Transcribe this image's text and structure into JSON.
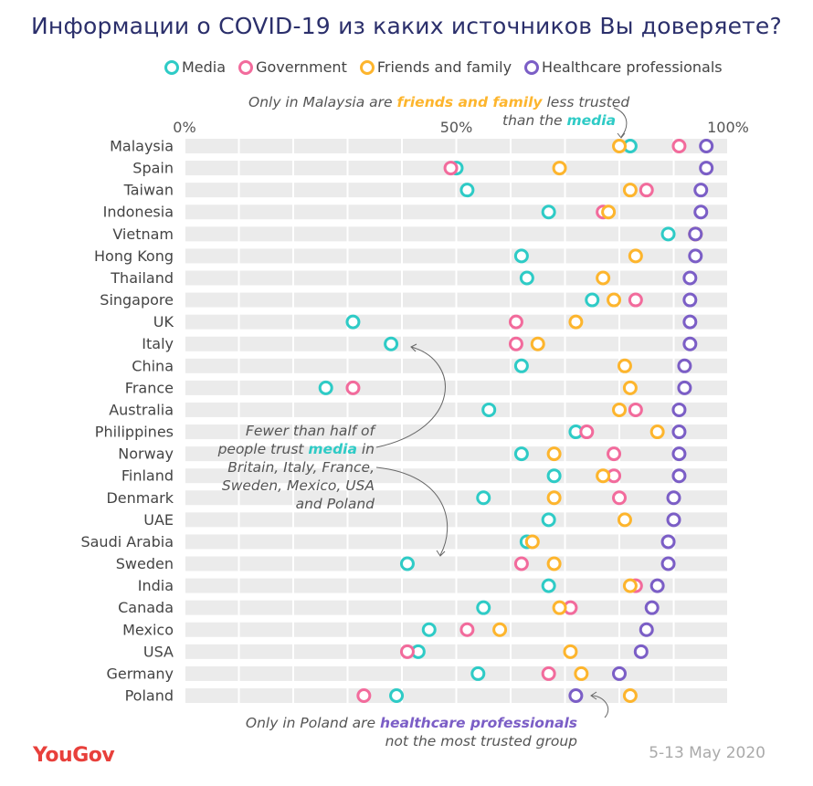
{
  "chart_data": {
    "type": "scatter",
    "title": "Информации о COVID-19 из каких источников Вы доверяете?",
    "xlim": [
      0,
      100
    ],
    "x_ticks": [
      "0%",
      "50%",
      "100%"
    ],
    "grid": true,
    "legend_placement": "top",
    "categories": [
      "Malaysia",
      "Spain",
      "Taiwan",
      "Indonesia",
      "Vietnam",
      "Hong Kong",
      "Thailand",
      "Singapore",
      "UK",
      "Italy",
      "China",
      "France",
      "Australia",
      "Philippines",
      "Norway",
      "Finland",
      "Denmark",
      "UAE",
      "Saudi Arabia",
      "Sweden",
      "India",
      "Canada",
      "Mexico",
      "USA",
      "Germany",
      "Poland"
    ],
    "series": [
      {
        "name": "Media",
        "color": "#2ecbc6",
        "values": [
          82,
          50,
          52,
          67,
          89,
          62,
          63,
          75,
          31,
          38,
          62,
          26,
          56,
          72,
          62,
          68,
          55,
          67,
          63,
          41,
          67,
          55,
          45,
          43,
          54,
          39
        ]
      },
      {
        "name": "Government",
        "color": "#f26b9c",
        "values": [
          91,
          49,
          85,
          77,
          94,
          null,
          null,
          83,
          61,
          61,
          null,
          31,
          83,
          74,
          79,
          79,
          80,
          null,
          null,
          62,
          83,
          71,
          52,
          41,
          67,
          33
        ]
      },
      {
        "name": "Friends and family",
        "color": "#fdb52d",
        "values": [
          80,
          69,
          82,
          78,
          94,
          83,
          77,
          79,
          72,
          65,
          81,
          82,
          80,
          87,
          68,
          77,
          68,
          81,
          64,
          68,
          82,
          69,
          58,
          71,
          73,
          82
        ]
      },
      {
        "name": "Healthcare professionals",
        "color": "#7b5ec6",
        "values": [
          96,
          96,
          95,
          95,
          94,
          94,
          93,
          93,
          93,
          93,
          92,
          92,
          91,
          91,
          91,
          91,
          90,
          90,
          89,
          89,
          87,
          86,
          85,
          84,
          80,
          72
        ]
      }
    ]
  },
  "annotations": {
    "malaysia": {
      "pre": "Only in Malaysia are ",
      "hl1": "friends and family",
      "mid": " less trusted",
      "line2": "than the ",
      "hl2": "media"
    },
    "media": {
      "l1": "Fewer than half of",
      "l2pre": "people trust ",
      "l2hl": "media",
      "l2post": " in",
      "l3": "Britain, Italy, France,",
      "l4": "Sweden, Mexico, USA",
      "l5": "and Poland"
    },
    "poland": {
      "pre": "Only in Poland are ",
      "hl": "healthcare professionals",
      "line2": "not the most trusted group"
    }
  },
  "footer": {
    "logo": "YouGov",
    "date": "5-13 May 2020"
  }
}
